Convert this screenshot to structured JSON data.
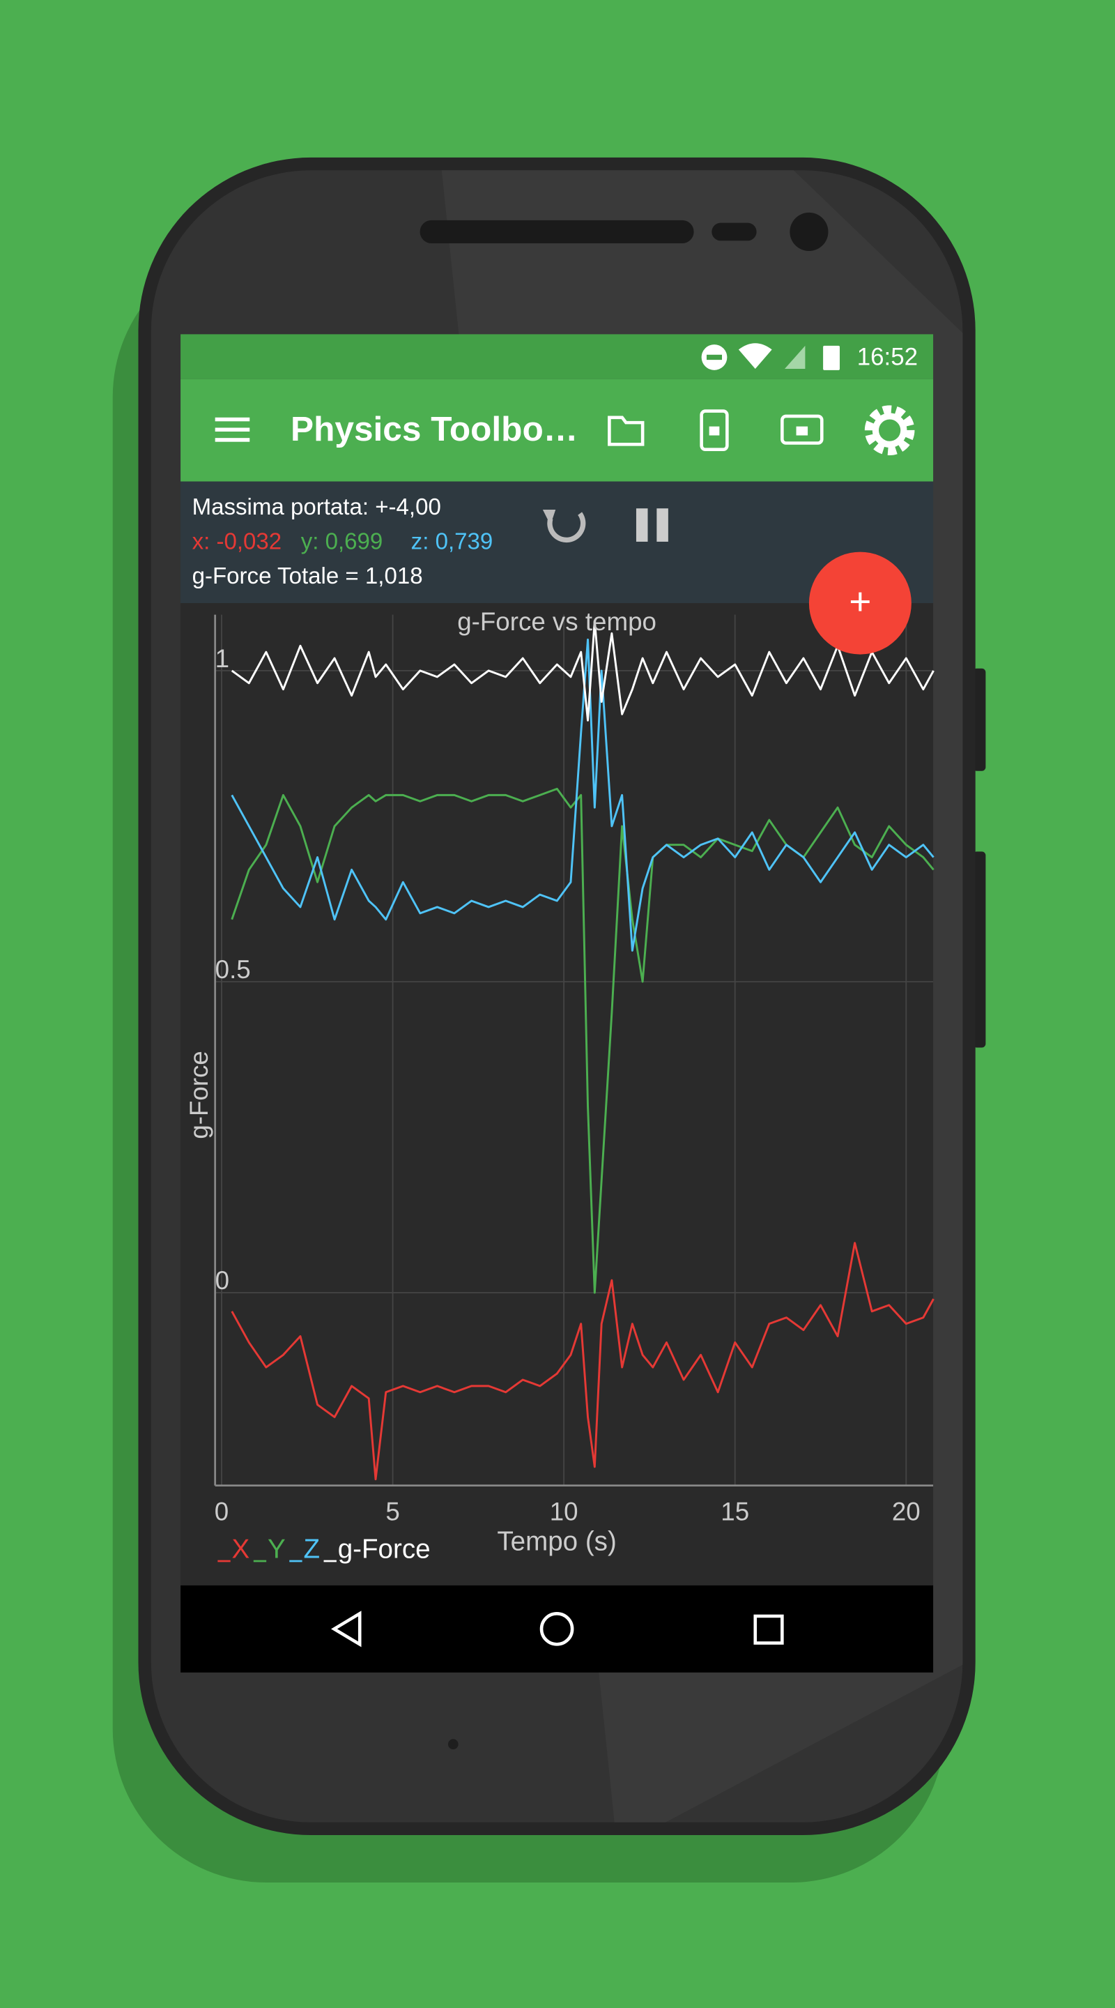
{
  "status_bar": {
    "time": "16:52"
  },
  "app_bar": {
    "title": "Physics Toolbo…"
  },
  "info": {
    "range": "Massima portata: +-4,00",
    "x": "x: -0,032",
    "y": "y: 0,699",
    "z": "z: 0,739",
    "total": "g-Force Totale = 1,018"
  },
  "fab": {
    "label": "+"
  },
  "chart_data": {
    "type": "line",
    "title": "g-Force vs tempo",
    "x_label": "Tempo (s)",
    "y_label": "g-Force",
    "x": [
      0.3,
      0.8,
      1.3,
      1.8,
      2.3,
      2.8,
      3.3,
      3.8,
      4.3,
      4.5,
      4.8,
      5.3,
      5.8,
      6.3,
      6.8,
      7.3,
      7.8,
      8.3,
      8.8,
      9.3,
      9.8,
      10.2,
      10.5,
      10.7,
      10.9,
      11.1,
      11.4,
      11.7,
      12.0,
      12.3,
      12.6,
      13.0,
      13.5,
      14.0,
      14.5,
      15.0,
      15.5,
      16.0,
      16.5,
      17.0,
      17.5,
      18.0,
      18.5,
      19.0,
      19.5,
      20.0,
      20.5,
      20.8
    ],
    "series": [
      {
        "name": "X",
        "color": "#e53935",
        "values": [
          -0.03,
          -0.08,
          -0.12,
          -0.1,
          -0.07,
          -0.18,
          -0.2,
          -0.15,
          -0.17,
          -0.3,
          -0.16,
          -0.15,
          -0.16,
          -0.15,
          -0.16,
          -0.15,
          -0.15,
          -0.16,
          -0.14,
          -0.15,
          -0.13,
          -0.1,
          -0.05,
          -0.2,
          -0.28,
          -0.05,
          0.02,
          -0.12,
          -0.05,
          -0.1,
          -0.12,
          -0.08,
          -0.14,
          -0.1,
          -0.16,
          -0.08,
          -0.12,
          -0.05,
          -0.04,
          -0.06,
          -0.02,
          -0.07,
          0.08,
          -0.03,
          -0.02,
          -0.05,
          -0.04,
          -0.01
        ]
      },
      {
        "name": "Y",
        "color": "#4caf50",
        "values": [
          0.6,
          0.68,
          0.72,
          0.8,
          0.75,
          0.66,
          0.75,
          0.78,
          0.8,
          0.79,
          0.8,
          0.8,
          0.79,
          0.8,
          0.8,
          0.79,
          0.8,
          0.8,
          0.79,
          0.8,
          0.81,
          0.78,
          0.8,
          0.3,
          0.0,
          0.18,
          0.45,
          0.75,
          0.6,
          0.5,
          0.7,
          0.72,
          0.72,
          0.7,
          0.73,
          0.72,
          0.71,
          0.76,
          0.72,
          0.7,
          0.74,
          0.78,
          0.72,
          0.7,
          0.75,
          0.72,
          0.7,
          0.68
        ]
      },
      {
        "name": "Z",
        "color": "#4fc3f7",
        "values": [
          0.8,
          0.75,
          0.7,
          0.65,
          0.62,
          0.7,
          0.6,
          0.68,
          0.63,
          0.62,
          0.6,
          0.66,
          0.61,
          0.62,
          0.61,
          0.63,
          0.62,
          0.63,
          0.62,
          0.64,
          0.63,
          0.66,
          0.9,
          1.05,
          0.78,
          1.0,
          0.75,
          0.8,
          0.55,
          0.65,
          0.7,
          0.72,
          0.7,
          0.72,
          0.73,
          0.7,
          0.74,
          0.68,
          0.72,
          0.7,
          0.66,
          0.7,
          0.74,
          0.68,
          0.72,
          0.7,
          0.72,
          0.7
        ]
      },
      {
        "name": "g-Force",
        "color": "#ffffff",
        "values": [
          1.0,
          0.98,
          1.03,
          0.97,
          1.04,
          0.98,
          1.02,
          0.96,
          1.03,
          0.99,
          1.01,
          0.97,
          1.0,
          0.99,
          1.01,
          0.98,
          1.0,
          0.99,
          1.02,
          0.98,
          1.01,
          0.99,
          1.03,
          0.92,
          1.08,
          0.95,
          1.06,
          0.93,
          0.97,
          1.02,
          0.98,
          1.03,
          0.97,
          1.02,
          0.99,
          1.01,
          0.96,
          1.03,
          0.98,
          1.02,
          0.97,
          1.04,
          0.96,
          1.03,
          0.98,
          1.02,
          0.97,
          1.0
        ]
      }
    ],
    "xlim": [
      -0.19,
      20.79
    ],
    "ylim": [
      -0.31,
      1.09
    ],
    "xticks": [
      0,
      5,
      10,
      15,
      20
    ],
    "yticks": [
      0,
      0.5,
      1
    ],
    "grid": true
  }
}
